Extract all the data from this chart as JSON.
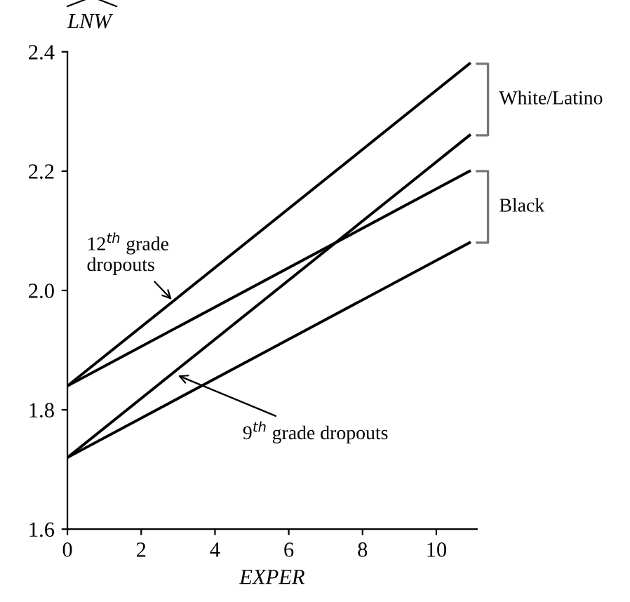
{
  "chart_data": {
    "type": "line",
    "xlabel": "EXPER",
    "ylabel": "LNW",
    "x": [
      0,
      10.9
    ],
    "series": [
      {
        "color": "#000000",
        "values": [
          1.84,
          2.38
        ]
      },
      {
        "color": "#000000",
        "values": [
          1.84,
          2.2
        ]
      },
      {
        "color": "#000000",
        "values": [
          1.72,
          2.26
        ]
      },
      {
        "color": "#000000",
        "values": [
          1.72,
          2.08
        ]
      }
    ],
    "xlim": [
      0,
      11.1
    ],
    "xticks": [
      0,
      2,
      4,
      6,
      8,
      10
    ],
    "ylim": [
      1.6,
      2.4
    ],
    "yticks": [
      {
        "value": 1.6,
        "label": "1.6"
      },
      {
        "value": 1.8,
        "label": "1.8"
      },
      {
        "value": 2.0,
        "label": "2.0"
      },
      {
        "value": 2.2,
        "label": "2.2"
      },
      {
        "value": 2.4,
        "label": "2.4"
      }
    ],
    "grid": false,
    "legend": false,
    "marker": "none",
    "line_style": "solid",
    "annotations": [
      {
        "text": "12$^{th}$ grade\ndropouts",
        "x": 2.9,
        "y": 1.98
      },
      {
        "text": "9$^{th}$ grade dropouts",
        "x": 2.9,
        "y": 1.86
      },
      "White/Latino",
      "Black"
    ]
  }
}
